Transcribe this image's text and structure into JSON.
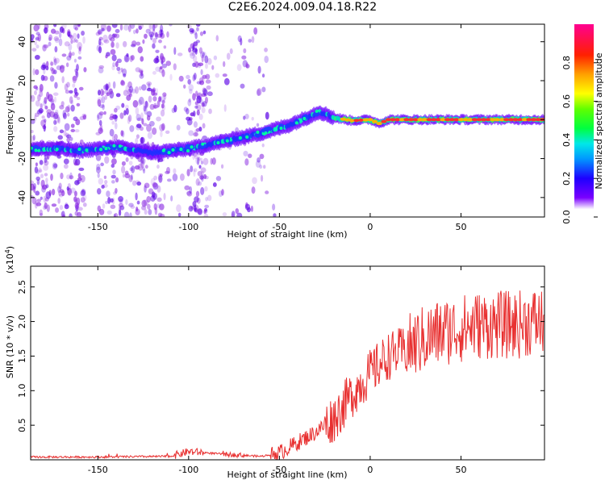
{
  "title": "C2E6.2024.009.04.18.R22",
  "chart_data": [
    {
      "type": "heatmap",
      "xlabel": "Height of straight line (km)",
      "ylabel": "Frequency (Hz)",
      "xlim": [
        -187,
        96
      ],
      "ylim": [
        -50,
        49
      ],
      "xticks": [
        -150,
        -100,
        -50,
        0,
        50
      ],
      "yticks": [
        -40,
        -20,
        0,
        20,
        40
      ],
      "colorbar": {
        "label": "Normalized spectral amplitude",
        "ticks": [
          "0.0",
          "0.2",
          "0.4",
          "0.6",
          "0.8"
        ],
        "range": [
          0,
          1
        ]
      },
      "ridge": {
        "x": [
          -187,
          -170,
          -160,
          -150,
          -140,
          -120,
          -100,
          -80,
          -60,
          -45,
          -35,
          -28,
          -20,
          -10,
          0,
          5,
          10,
          20,
          40,
          60,
          80,
          96
        ],
        "y": [
          -15,
          -15,
          -16,
          -15,
          -14,
          -17,
          -15,
          -11,
          -7,
          -3,
          1,
          4,
          1,
          -0.5,
          0,
          -2,
          0,
          0,
          0,
          0,
          0,
          0
        ]
      }
    },
    {
      "type": "line",
      "xlabel": "Height of straight line (km)",
      "ylabel": "SNR (10 * v/v)",
      "yscale_label": "(x10",
      "yscale_exp": "4",
      "yscale_close": ")",
      "xlim": [
        -187,
        96
      ],
      "ylim": [
        0,
        2.8
      ],
      "xticks": [
        -150,
        -100,
        -50,
        0,
        50
      ],
      "yticks": [
        0.5,
        1.0,
        1.5,
        2.0,
        2.5
      ],
      "color": "#e83030",
      "trend": {
        "x": [
          -187,
          -150,
          -110,
          -100,
          -80,
          -60,
          -50,
          -40,
          -30,
          -20,
          -10,
          0,
          10,
          20,
          30,
          40,
          50,
          60,
          70,
          80,
          90,
          96
        ],
        "y": [
          0.04,
          0.04,
          0.05,
          0.12,
          0.08,
          0.05,
          0.1,
          0.25,
          0.4,
          0.6,
          0.95,
          1.25,
          1.5,
          1.6,
          1.75,
          1.85,
          1.9,
          1.95,
          1.95,
          1.95,
          2.0,
          2.0
        ]
      }
    }
  ]
}
